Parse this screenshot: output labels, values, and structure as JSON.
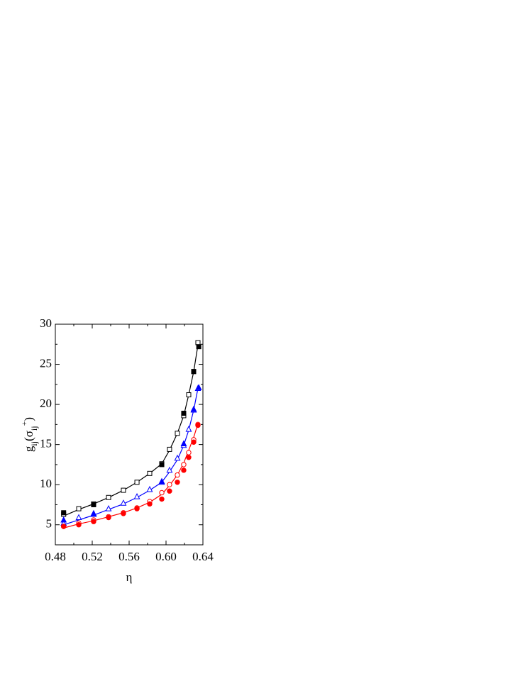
{
  "chart_data": {
    "type": "scatter-line",
    "xlabel": "η",
    "ylabel_parts": [
      {
        "text": "g"
      },
      {
        "text": "ij",
        "shift": "sub"
      },
      {
        "text": "(σ"
      },
      {
        "text": "ij",
        "shift": "sub"
      },
      {
        "text": "+",
        "shift": "sup"
      },
      {
        "text": ")"
      }
    ],
    "xlim": [
      0.48,
      0.64
    ],
    "ylim": [
      2.5,
      30
    ],
    "xticks": [
      0.48,
      0.52,
      0.56,
      {
        "value": 0.6,
        "label": "0.60"
      },
      0.64
    ],
    "xminorticks": [
      0.5,
      0.54,
      0.58,
      0.62
    ],
    "yticks": [
      5,
      10,
      15,
      20,
      25,
      30
    ],
    "yminorticks": [
      2.5,
      7.5,
      12.5,
      17.5,
      22.5,
      27.5
    ],
    "series": [
      {
        "color": "#000000",
        "marker": "line",
        "x": [
          0.489,
          0.5054,
          0.5215,
          0.5377,
          0.5538,
          0.5685,
          0.5823,
          0.5954,
          0.6038,
          0.6123,
          0.6192,
          0.6246,
          0.63,
          0.6346
        ],
        "values": [
          6.1,
          6.9,
          7.6,
          8.4,
          9.3,
          10.3,
          11.4,
          12.6,
          14.3,
          16.4,
          18.6,
          21.2,
          24.1,
          27.4
        ]
      },
      {
        "color": "#000000",
        "marker": "square",
        "filled": false,
        "x": [
          0.489,
          0.5054,
          0.5215,
          0.5377,
          0.5538,
          0.5685,
          0.5823,
          0.5954,
          0.6038,
          0.6123,
          0.6192,
          0.6246,
          0.63,
          0.6346
        ],
        "values": [
          6.3,
          7.0,
          7.6,
          8.4,
          9.3,
          10.3,
          11.4,
          12.6,
          14.4,
          16.4,
          18.6,
          21.2,
          24.1,
          27.7
        ]
      },
      {
        "color": "#000000",
        "marker": "square",
        "filled": true,
        "x": [
          0.489,
          0.5215,
          0.5954,
          0.6192,
          0.63,
          0.6355
        ],
        "values": [
          6.5,
          7.5,
          12.5,
          18.9,
          24.1,
          27.2
        ]
      },
      {
        "color": "#0000ff",
        "marker": "line",
        "x": [
          0.489,
          0.5054,
          0.5215,
          0.5377,
          0.5538,
          0.5685,
          0.5823,
          0.5954,
          0.6038,
          0.6123,
          0.6192,
          0.6246,
          0.63,
          0.6346
        ],
        "values": [
          5.0,
          5.6,
          6.2,
          6.9,
          7.6,
          8.4,
          9.3,
          10.3,
          11.6,
          13.1,
          14.9,
          16.8,
          19.3,
          22.0
        ]
      },
      {
        "color": "#0000ff",
        "marker": "triangle",
        "filled": false,
        "x": [
          0.489,
          0.5054,
          0.5215,
          0.5377,
          0.5538,
          0.5685,
          0.5823,
          0.5954,
          0.6038,
          0.6123,
          0.6192,
          0.6246,
          0.63,
          0.6346
        ],
        "values": [
          5.2,
          5.9,
          6.3,
          7.0,
          7.7,
          8.5,
          9.4,
          10.3,
          11.8,
          13.3,
          14.9,
          16.9,
          19.3,
          22.0
        ]
      },
      {
        "color": "#0000ff",
        "marker": "triangle",
        "filled": true,
        "x": [
          0.489,
          0.5215,
          0.5954,
          0.6192,
          0.63,
          0.6355
        ],
        "values": [
          5.6,
          6.4,
          10.4,
          15.1,
          19.4,
          22.1
        ]
      },
      {
        "color": "#ff0000",
        "marker": "line",
        "x": [
          0.489,
          0.5054,
          0.5215,
          0.5377,
          0.5538,
          0.5685,
          0.5823,
          0.5954,
          0.6038,
          0.6123,
          0.6192,
          0.6246,
          0.63,
          0.6346
        ],
        "values": [
          4.6,
          5.1,
          5.5,
          6.0,
          6.5,
          7.1,
          7.8,
          8.8,
          9.9,
          11.2,
          12.7,
          14.3,
          15.9,
          17.6
        ]
      },
      {
        "color": "#ff0000",
        "marker": "circle",
        "filled": false,
        "x": [
          0.489,
          0.5054,
          0.5215,
          0.5377,
          0.5538,
          0.5685,
          0.5823,
          0.5954,
          0.6038,
          0.6123,
          0.6192,
          0.6246,
          0.63,
          0.6346
        ],
        "values": [
          4.8,
          5.2,
          5.6,
          6.0,
          6.5,
          7.1,
          7.9,
          9.0,
          10.0,
          11.2,
          12.5,
          14.0,
          15.6,
          17.5
        ]
      },
      {
        "color": "#ff0000",
        "marker": "circle",
        "filled": true,
        "x": [
          0.489,
          0.5054,
          0.5215,
          0.5377,
          0.5538,
          0.5685,
          0.5823,
          0.5954,
          0.6038,
          0.6123,
          0.6192,
          0.6246,
          0.63,
          0.6346
        ],
        "values": [
          4.8,
          5.0,
          5.4,
          5.9,
          6.4,
          7.0,
          7.6,
          8.2,
          9.2,
          10.3,
          11.8,
          13.4,
          15.3,
          17.4
        ]
      }
    ]
  }
}
